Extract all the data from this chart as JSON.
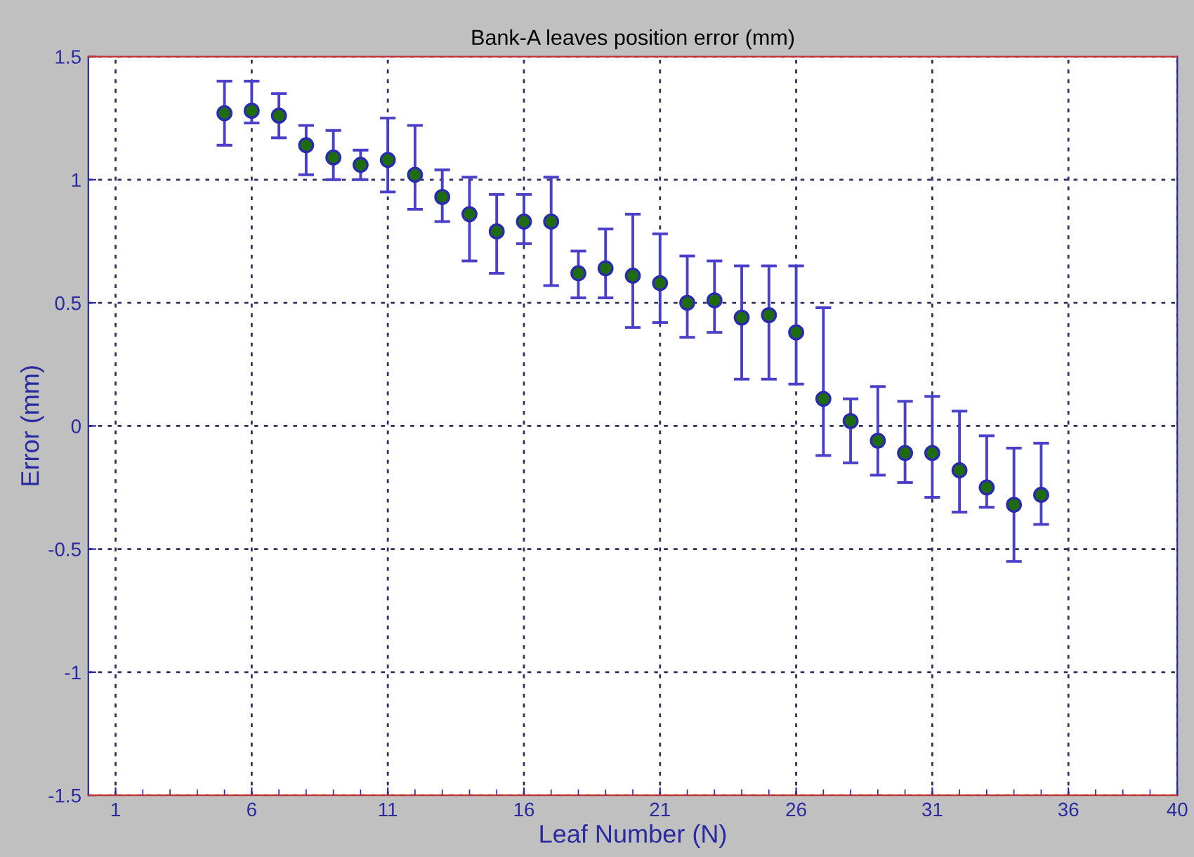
{
  "chart_data": {
    "type": "scatter",
    "title": "Bank-A leaves position error (mm)",
    "xlabel": "Leaf Number (N)",
    "ylabel": "Error (mm)",
    "x": [
      5,
      6,
      7,
      8,
      9,
      10,
      11,
      12,
      13,
      14,
      15,
      16,
      17,
      18,
      19,
      20,
      21,
      22,
      23,
      24,
      25,
      26,
      27,
      28,
      29,
      30,
      31,
      32,
      33,
      34,
      35
    ],
    "series": [
      {
        "color": "#1f6b10",
        "values": [
          1.27,
          1.28,
          1.26,
          1.14,
          1.09,
          1.06,
          1.08,
          1.02,
          0.93,
          0.86,
          0.79,
          0.83,
          0.83,
          0.62,
          0.64,
          0.61,
          0.58,
          0.5,
          0.51,
          0.44,
          0.45,
          0.38,
          0.11,
          0.02,
          -0.06,
          -0.11,
          -0.11,
          -0.18,
          -0.25,
          -0.32,
          -0.28
        ],
        "errors": [
          [
            1.14,
            1.4
          ],
          [
            1.23,
            1.4
          ],
          [
            1.17,
            1.35
          ],
          [
            1.02,
            1.22
          ],
          [
            1.0,
            1.2
          ],
          [
            1.0,
            1.12
          ],
          [
            0.95,
            1.25
          ],
          [
            0.88,
            1.22
          ],
          [
            0.83,
            1.04
          ],
          [
            0.67,
            1.01
          ],
          [
            0.62,
            0.94
          ],
          [
            0.74,
            0.94
          ],
          [
            0.57,
            1.01
          ],
          [
            0.52,
            0.71
          ],
          [
            0.52,
            0.8
          ],
          [
            0.4,
            0.86
          ],
          [
            0.42,
            0.78
          ],
          [
            0.36,
            0.69
          ],
          [
            0.38,
            0.67
          ],
          [
            0.19,
            0.65
          ],
          [
            0.19,
            0.65
          ],
          [
            0.17,
            0.65
          ],
          [
            -0.12,
            0.48
          ],
          [
            -0.15,
            0.11
          ],
          [
            -0.2,
            0.16
          ],
          [
            -0.23,
            0.1
          ],
          [
            -0.29,
            0.12
          ],
          [
            -0.35,
            0.06
          ],
          [
            -0.33,
            -0.04
          ],
          [
            -0.55,
            -0.09
          ],
          [
            -0.4,
            -0.07
          ]
        ]
      }
    ],
    "xlim": [
      0,
      40
    ],
    "xticks": [
      1,
      6,
      11,
      16,
      21,
      26,
      31,
      36,
      40
    ],
    "ylim": [
      -1.5,
      1.5
    ],
    "yticks": [
      -1.5,
      -1,
      -0.5,
      0,
      0.5,
      1,
      1.5
    ],
    "grid": true,
    "marker": "circle"
  }
}
